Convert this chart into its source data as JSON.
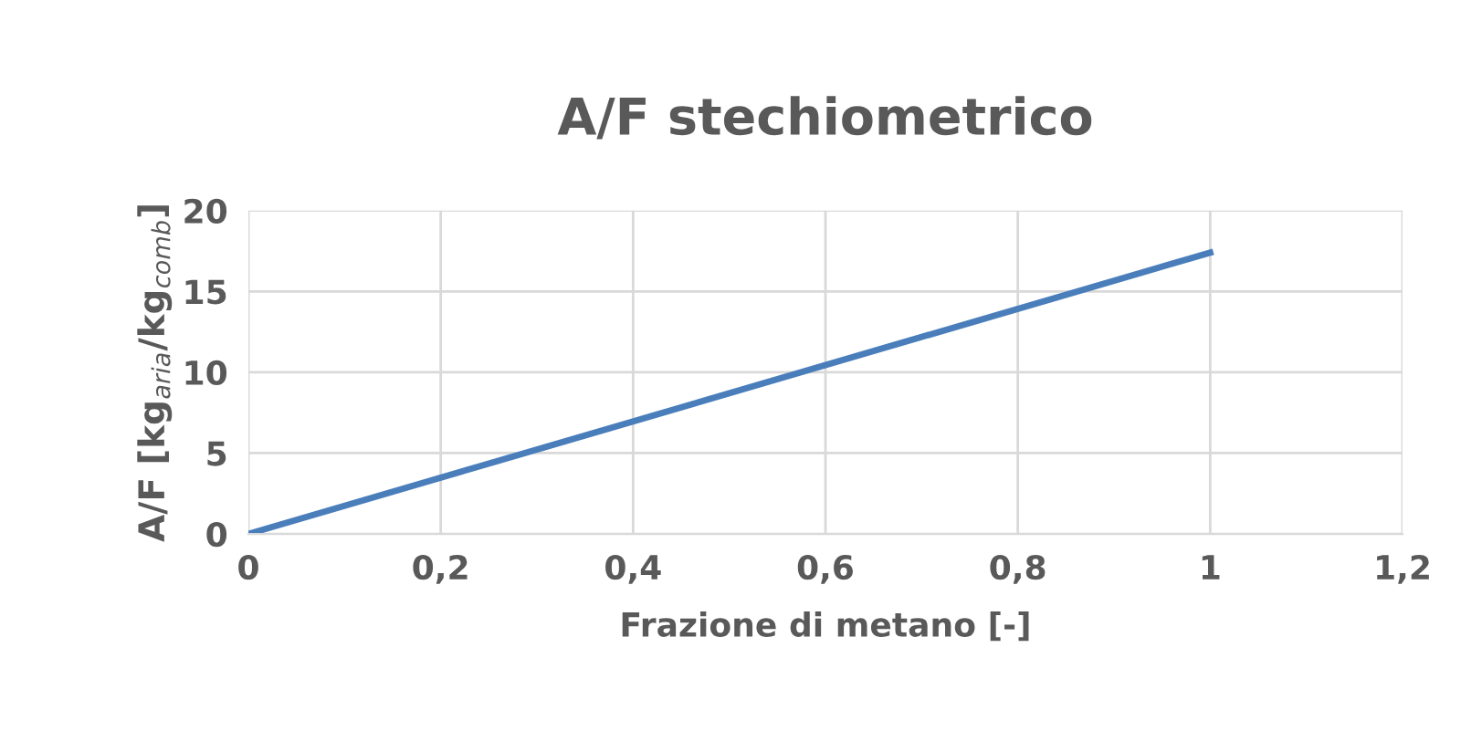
{
  "chart_data": {
    "type": "line",
    "title": "A/F stechiometrico",
    "xlabel": "Frazione di metano [-]",
    "ylabel": "A/F [kg$_{aria}$/kg$_{comb}$]",
    "x": [
      0,
      1
    ],
    "series": [
      {
        "color": "#4a7ebb",
        "values": [
          0,
          17.4
        ]
      }
    ],
    "xlim": [
      0,
      1.2
    ],
    "xticks": [
      0,
      {
        "value": 0.2,
        "label": "0,2"
      },
      {
        "value": 0.4,
        "label": "0,4"
      },
      {
        "value": 0.6,
        "label": "0,6"
      },
      {
        "value": 0.8,
        "label": "0,8"
      },
      1,
      {
        "value": 1.2,
        "label": "1,2"
      }
    ],
    "ylim": [
      0,
      20
    ],
    "yticks": [
      0,
      5,
      10,
      15,
      20
    ],
    "grid": true,
    "marker": "none",
    "line_style": "solid",
    "legend": false
  }
}
